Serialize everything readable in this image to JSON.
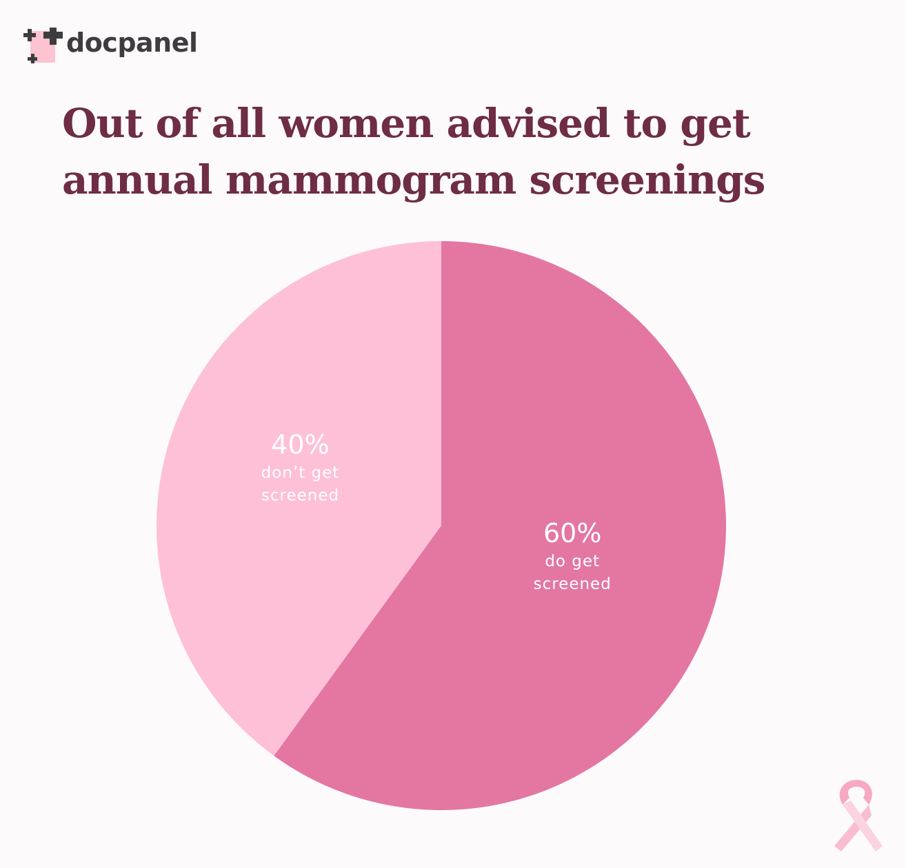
{
  "brand": {
    "name": "docpanel"
  },
  "chart_data": {
    "type": "pie",
    "title": "Out of all women advised to get annual mammogram screenings",
    "slices": [
      {
        "value": 60,
        "percent_label": "60%",
        "label_lines": [
          "do get",
          "screened"
        ],
        "color": "#e377a2"
      },
      {
        "value": 40,
        "percent_label": "40%",
        "label_lines": [
          "don’t get",
          "screened"
        ],
        "color": "#fec0d7"
      }
    ],
    "start": "12 o'clock",
    "direction": "clockwise"
  },
  "decor": {
    "ribbon_icon": "pink-ribbon-icon",
    "ribbon_color": "#f7b3c9"
  }
}
